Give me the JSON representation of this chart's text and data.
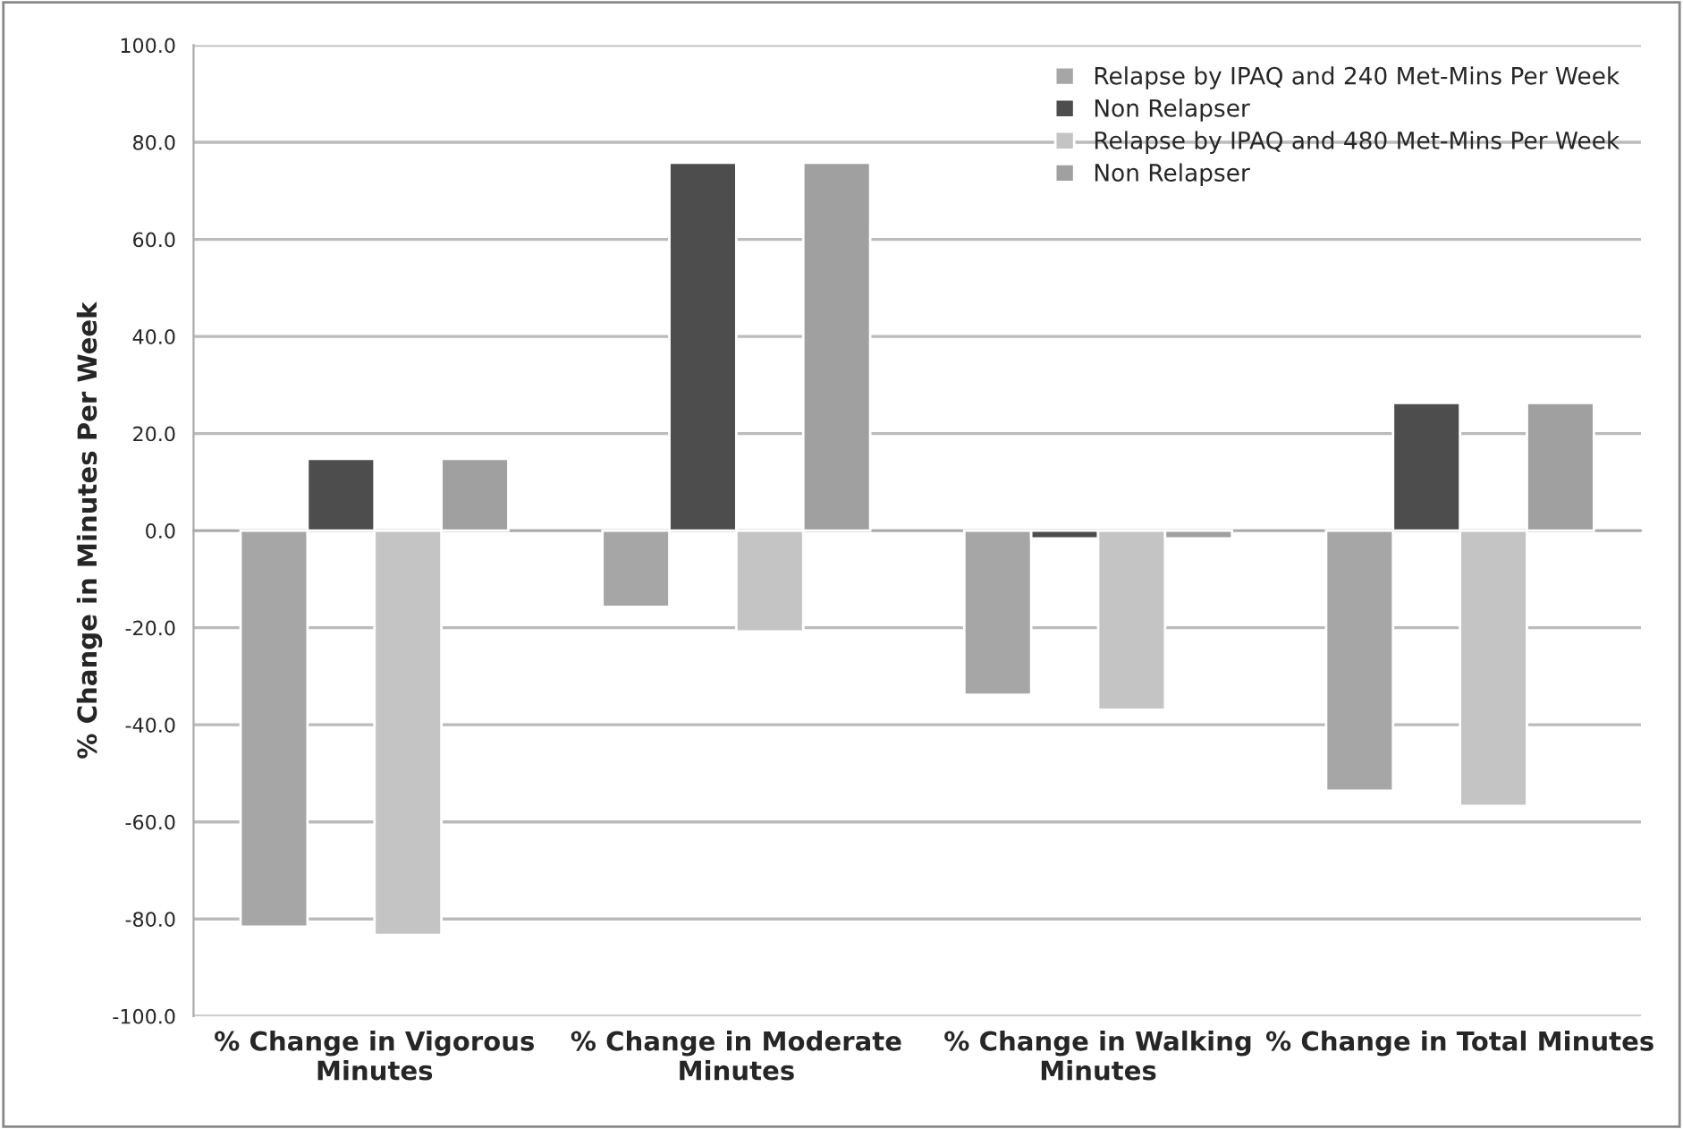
{
  "chart_data": {
    "type": "bar",
    "ylabel": "% Change in Minutes Per Week",
    "categories": [
      "% Change in Vigorous Minutes",
      "% Change in Moderate Minutes",
      "% Change in Walking Minutes",
      "% Change in Total Minutes"
    ],
    "series": [
      {
        "name": "Relapse by IPAQ and 240 Met-Mins Per Week",
        "color": "#a6a6a6",
        "values": [
          -81.6,
          -15.7,
          -33.8,
          -53.6
        ]
      },
      {
        "name": "Non Relapser",
        "color": "#4d4d4d",
        "values": [
          14.8,
          75.8,
          -1.6,
          26.3
        ]
      },
      {
        "name": "Relapse by IPAQ and 480 Met-Mins Per Week",
        "color": "#c4c4c4",
        "values": [
          -83.3,
          -20.8,
          -36.9,
          -56.7
        ]
      },
      {
        "name": "Non Relapser",
        "color": "#a0a0a0",
        "values": [
          14.8,
          75.8,
          -1.6,
          26.3
        ]
      }
    ],
    "ylim": [
      -100,
      100
    ],
    "yticks": [
      {
        "value": -100,
        "label": "-100.0"
      },
      {
        "value": -80,
        "label": "-80.0"
      },
      {
        "value": -60,
        "label": "-60.0"
      },
      {
        "value": -40,
        "label": "-40.0"
      },
      {
        "value": -20,
        "label": "-20.0"
      },
      {
        "value": 0,
        "label": "0.0"
      },
      {
        "value": 20,
        "label": "20.0"
      },
      {
        "value": 40,
        "label": "40.0"
      },
      {
        "value": 60,
        "label": "60.0"
      },
      {
        "value": 80,
        "label": "80.0"
      },
      {
        "value": 100,
        "label": "100.0"
      }
    ],
    "grid": "y",
    "legend": "top right"
  }
}
